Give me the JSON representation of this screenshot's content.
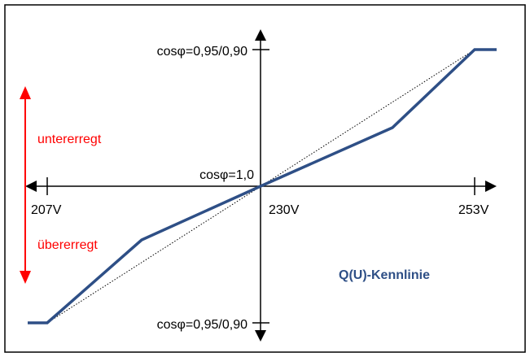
{
  "labels": {
    "cos_top": "cosφ=0,95/0,90",
    "cos_bottom": "cosφ=0,95/0,90",
    "cos_center": "cosφ=1,0",
    "v_left": "207V",
    "v_center": "230V",
    "v_right": "253V",
    "untererregt": "untererregt",
    "uebererregt": "übererregt",
    "title": "Q(U)-Kennlinie"
  },
  "colors": {
    "curve": "#2e4f86",
    "arrow_red": "#ff0000",
    "axis": "#000000",
    "title": "#2e4f86",
    "frame": "#000000"
  },
  "chart_data": {
    "type": "line",
    "x_ticks": [
      "207V",
      "230V",
      "253V"
    ],
    "y_ticks": [
      "cosφ=0,95/0,90",
      "cosφ=1,0",
      "cosφ=0,95/0,90"
    ],
    "series": [
      {
        "points": [
          [
            -1.2,
            -1
          ],
          [
            -1,
            -1
          ],
          [
            -0.55,
            -0.38
          ],
          [
            0,
            0
          ],
          [
            0.55,
            0.38
          ],
          [
            1,
            1
          ],
          [
            1.2,
            1
          ]
        ]
      },
      {
        "points": [
          [
            -1,
            -1
          ],
          [
            1,
            1
          ]
        ]
      }
    ]
  }
}
